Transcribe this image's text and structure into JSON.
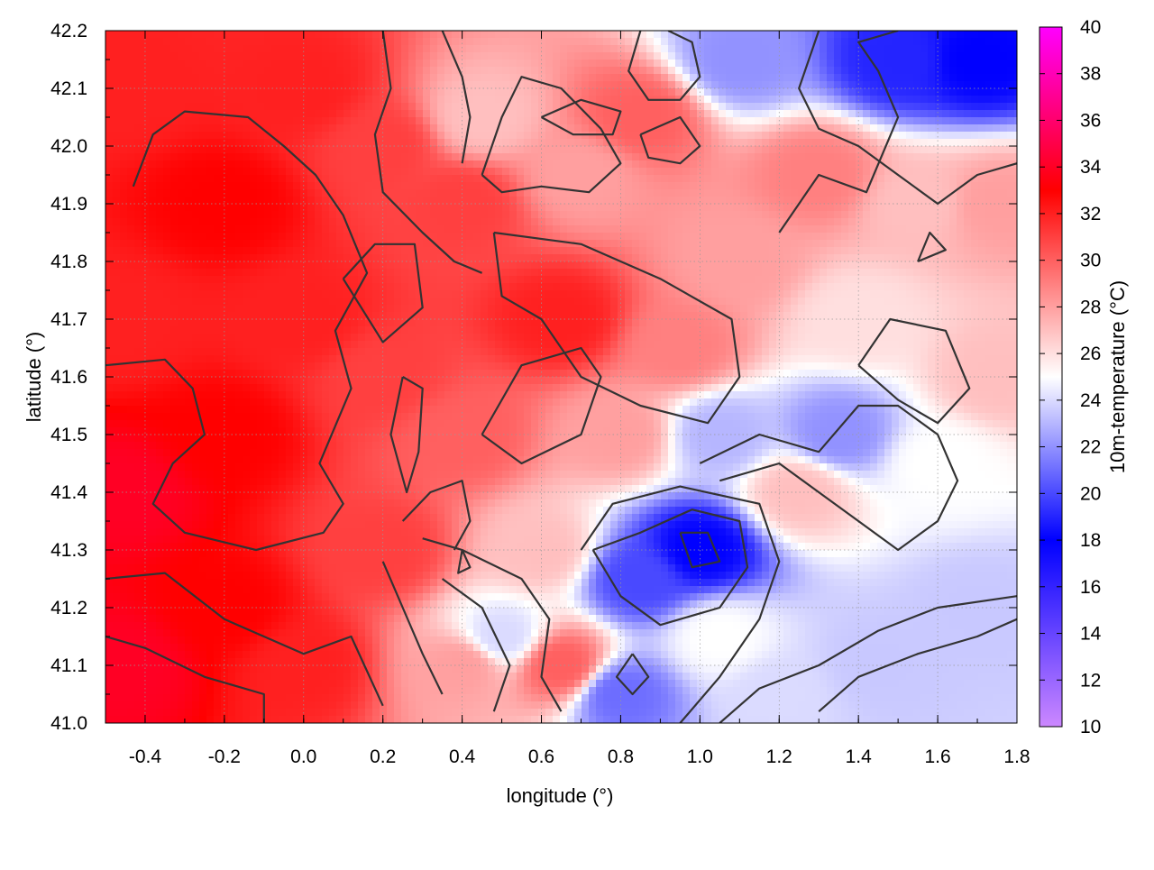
{
  "chart_data": {
    "type": "heatmap",
    "title": "",
    "xlabel": "longitude (°)",
    "ylabel": "latitude (°)",
    "colorbar_label": "10m-temperature (°C)",
    "xlim": [
      -0.5,
      1.8
    ],
    "ylim": [
      41.0,
      42.2
    ],
    "x_ticks": [
      "-0.4",
      "-0.2",
      "0.0",
      "0.2",
      "0.4",
      "0.6",
      "0.8",
      "1.0",
      "1.2",
      "1.4",
      "1.6",
      "1.8"
    ],
    "y_ticks": [
      "41.0",
      "41.1",
      "41.2",
      "41.3",
      "41.4",
      "41.5",
      "41.6",
      "41.7",
      "41.8",
      "41.9",
      "42.0",
      "42.1",
      "42.2"
    ],
    "colorbar_range": [
      10,
      40
    ],
    "colorbar_ticks": [
      "10",
      "12",
      "14",
      "16",
      "18",
      "20",
      "22",
      "24",
      "26",
      "28",
      "30",
      "32",
      "34",
      "36",
      "38",
      "40"
    ],
    "colorscale": [
      {
        "value": 10,
        "color": "#cc88ff"
      },
      {
        "value": 18,
        "color": "#0000ff"
      },
      {
        "value": 25,
        "color": "#ffffff"
      },
      {
        "value": 33,
        "color": "#ff0000"
      },
      {
        "value": 40,
        "color": "#ff00ff"
      }
    ],
    "grid": true,
    "contours": true,
    "temperature_points": [
      {
        "lon": -0.45,
        "lat": 41.1,
        "t": 34
      },
      {
        "lon": -0.45,
        "lat": 41.4,
        "t": 34
      },
      {
        "lon": -0.45,
        "lat": 41.7,
        "t": 32
      },
      {
        "lon": -0.45,
        "lat": 42.1,
        "t": 32
      },
      {
        "lon": -0.2,
        "lat": 41.2,
        "t": 33
      },
      {
        "lon": -0.2,
        "lat": 41.5,
        "t": 33
      },
      {
        "lon": -0.2,
        "lat": 41.9,
        "t": 33
      },
      {
        "lon": 0.0,
        "lat": 41.1,
        "t": 32
      },
      {
        "lon": 0.0,
        "lat": 41.7,
        "t": 32
      },
      {
        "lon": 0.0,
        "lat": 42.1,
        "t": 32
      },
      {
        "lon": 0.2,
        "lat": 41.3,
        "t": 31
      },
      {
        "lon": 0.2,
        "lat": 41.6,
        "t": 31
      },
      {
        "lon": 0.2,
        "lat": 42.0,
        "t": 31
      },
      {
        "lon": 0.4,
        "lat": 41.1,
        "t": 28
      },
      {
        "lon": 0.4,
        "lat": 41.5,
        "t": 30
      },
      {
        "lon": 0.4,
        "lat": 41.9,
        "t": 31
      },
      {
        "lon": 0.45,
        "lat": 42.05,
        "t": 27
      },
      {
        "lon": 0.5,
        "lat": 41.15,
        "t": 24
      },
      {
        "lon": 0.65,
        "lat": 41.7,
        "t": 32
      },
      {
        "lon": 0.6,
        "lat": 41.3,
        "t": 27
      },
      {
        "lon": 0.65,
        "lat": 41.1,
        "t": 30
      },
      {
        "lon": 0.7,
        "lat": 41.95,
        "t": 28
      },
      {
        "lon": 0.85,
        "lat": 42.05,
        "t": 30
      },
      {
        "lon": 0.85,
        "lat": 41.25,
        "t": 20
      },
      {
        "lon": 0.8,
        "lat": 41.05,
        "t": 21
      },
      {
        "lon": 0.8,
        "lat": 41.5,
        "t": 28
      },
      {
        "lon": 0.95,
        "lat": 41.65,
        "t": 29
      },
      {
        "lon": 1.0,
        "lat": 41.3,
        "t": 18
      },
      {
        "lon": 1.05,
        "lat": 41.5,
        "t": 23
      },
      {
        "lon": 1.05,
        "lat": 41.15,
        "t": 25
      },
      {
        "lon": 1.1,
        "lat": 42.15,
        "t": 22
      },
      {
        "lon": 1.1,
        "lat": 41.8,
        "t": 28
      },
      {
        "lon": 1.2,
        "lat": 41.05,
        "t": 24
      },
      {
        "lon": 1.25,
        "lat": 41.4,
        "t": 27
      },
      {
        "lon": 1.3,
        "lat": 41.95,
        "t": 29
      },
      {
        "lon": 1.35,
        "lat": 41.5,
        "t": 22
      },
      {
        "lon": 1.4,
        "lat": 41.7,
        "t": 26
      },
      {
        "lon": 1.45,
        "lat": 41.1,
        "t": 23.5
      },
      {
        "lon": 1.5,
        "lat": 42.15,
        "t": 19
      },
      {
        "lon": 1.55,
        "lat": 41.9,
        "t": 27
      },
      {
        "lon": 1.6,
        "lat": 41.45,
        "t": 25
      },
      {
        "lon": 1.7,
        "lat": 42.15,
        "t": 18
      },
      {
        "lon": 1.7,
        "lat": 41.2,
        "t": 23.5
      },
      {
        "lon": 1.75,
        "lat": 41.6,
        "t": 27
      },
      {
        "lon": 1.75,
        "lat": 41.9,
        "t": 28
      }
    ],
    "contour_lines": [
      [
        [
          -0.5,
          41.62
        ],
        [
          -0.35,
          41.63
        ],
        [
          -0.28,
          41.58
        ],
        [
          -0.25,
          41.5
        ],
        [
          -0.33,
          41.45
        ],
        [
          -0.38,
          41.38
        ],
        [
          -0.3,
          41.33
        ],
        [
          -0.12,
          41.3
        ],
        [
          0.05,
          41.33
        ],
        [
          0.1,
          41.38
        ],
        [
          0.04,
          41.45
        ],
        [
          0.12,
          41.58
        ],
        [
          0.08,
          41.68
        ],
        [
          0.16,
          41.78
        ],
        [
          0.1,
          41.88
        ],
        [
          0.03,
          41.95
        ],
        [
          -0.05,
          42.0
        ],
        [
          -0.14,
          42.05
        ],
        [
          -0.3,
          42.06
        ],
        [
          -0.38,
          42.02
        ],
        [
          -0.43,
          41.93
        ]
      ],
      [
        [
          -0.5,
          41.25
        ],
        [
          -0.35,
          41.26
        ],
        [
          -0.2,
          41.18
        ],
        [
          0.0,
          41.12
        ],
        [
          0.12,
          41.15
        ],
        [
          0.2,
          41.03
        ]
      ],
      [
        [
          -0.5,
          41.15
        ],
        [
          -0.4,
          41.13
        ],
        [
          -0.25,
          41.08
        ],
        [
          -0.1,
          41.05
        ],
        [
          -0.1,
          41.0
        ]
      ],
      [
        [
          0.25,
          41.6
        ],
        [
          0.22,
          41.5
        ],
        [
          0.26,
          41.4
        ],
        [
          0.29,
          41.47
        ],
        [
          0.3,
          41.58
        ],
        [
          0.25,
          41.6
        ]
      ],
      [
        [
          0.1,
          41.77
        ],
        [
          0.2,
          41.66
        ],
        [
          0.3,
          41.72
        ],
        [
          0.28,
          41.83
        ],
        [
          0.18,
          41.83
        ],
        [
          0.1,
          41.77
        ]
      ],
      [
        [
          0.48,
          41.85
        ],
        [
          0.7,
          41.83
        ],
        [
          0.9,
          41.77
        ],
        [
          1.08,
          41.7
        ],
        [
          1.1,
          41.6
        ],
        [
          1.02,
          41.52
        ],
        [
          0.85,
          41.55
        ],
        [
          0.7,
          41.6
        ],
        [
          0.6,
          41.7
        ],
        [
          0.5,
          41.74
        ],
        [
          0.48,
          41.85
        ]
      ],
      [
        [
          0.45,
          41.5
        ],
        [
          0.55,
          41.45
        ],
        [
          0.7,
          41.5
        ],
        [
          0.75,
          41.6
        ],
        [
          0.7,
          41.65
        ],
        [
          0.55,
          41.62
        ],
        [
          0.45,
          41.5
        ]
      ],
      [
        [
          0.73,
          41.3
        ],
        [
          0.85,
          41.33
        ],
        [
          0.98,
          41.37
        ],
        [
          1.1,
          41.35
        ],
        [
          1.12,
          41.27
        ],
        [
          1.05,
          41.2
        ],
        [
          0.9,
          41.17
        ],
        [
          0.8,
          41.22
        ],
        [
          0.73,
          41.3
        ]
      ],
      [
        [
          0.95,
          41.33
        ],
        [
          1.02,
          41.33
        ],
        [
          1.05,
          41.28
        ],
        [
          0.98,
          41.27
        ],
        [
          0.95,
          41.33
        ]
      ],
      [
        [
          0.83,
          41.12
        ],
        [
          0.87,
          41.08
        ],
        [
          0.83,
          41.05
        ],
        [
          0.79,
          41.08
        ],
        [
          0.83,
          41.12
        ]
      ],
      [
        [
          0.7,
          41.3
        ],
        [
          0.78,
          41.38
        ],
        [
          0.95,
          41.41
        ],
        [
          1.15,
          41.38
        ],
        [
          1.2,
          41.28
        ],
        [
          1.15,
          41.18
        ],
        [
          1.05,
          41.08
        ],
        [
          0.95,
          41.0
        ]
      ],
      [
        [
          1.05,
          41.0
        ],
        [
          1.15,
          41.06
        ],
        [
          1.3,
          41.1
        ],
        [
          1.45,
          41.16
        ],
        [
          1.6,
          41.2
        ],
        [
          1.8,
          41.22
        ]
      ],
      [
        [
          1.0,
          41.45
        ],
        [
          1.15,
          41.5
        ],
        [
          1.3,
          41.47
        ],
        [
          1.4,
          41.55
        ],
        [
          1.5,
          41.55
        ],
        [
          1.6,
          41.5
        ],
        [
          1.65,
          41.42
        ],
        [
          1.6,
          41.35
        ],
        [
          1.5,
          41.3
        ],
        [
          1.4,
          41.35
        ],
        [
          1.3,
          41.4
        ],
        [
          1.2,
          41.45
        ],
        [
          1.05,
          41.42
        ]
      ],
      [
        [
          1.4,
          41.62
        ],
        [
          1.48,
          41.7
        ],
        [
          1.62,
          41.68
        ],
        [
          1.68,
          41.58
        ],
        [
          1.6,
          41.52
        ],
        [
          1.5,
          41.56
        ],
        [
          1.4,
          41.62
        ]
      ],
      [
        [
          1.2,
          41.85
        ],
        [
          1.3,
          41.95
        ],
        [
          1.42,
          41.92
        ],
        [
          1.5,
          42.05
        ],
        [
          1.45,
          42.13
        ],
        [
          1.4,
          42.18
        ],
        [
          1.5,
          42.2
        ]
      ],
      [
        [
          1.3,
          42.2
        ],
        [
          1.25,
          42.1
        ],
        [
          1.3,
          42.03
        ],
        [
          1.4,
          42.0
        ],
        [
          1.5,
          41.95
        ],
        [
          1.6,
          41.9
        ],
        [
          1.7,
          41.95
        ],
        [
          1.8,
          41.97
        ]
      ],
      [
        [
          0.45,
          41.95
        ],
        [
          0.5,
          42.05
        ],
        [
          0.55,
          42.12
        ],
        [
          0.65,
          42.1
        ],
        [
          0.75,
          42.03
        ],
        [
          0.8,
          41.97
        ],
        [
          0.72,
          41.92
        ],
        [
          0.6,
          41.93
        ],
        [
          0.5,
          41.92
        ],
        [
          0.45,
          41.95
        ]
      ],
      [
        [
          0.6,
          42.05
        ],
        [
          0.7,
          42.08
        ],
        [
          0.8,
          42.06
        ],
        [
          0.78,
          42.02
        ],
        [
          0.68,
          42.02
        ],
        [
          0.6,
          42.05
        ]
      ],
      [
        [
          0.85,
          42.02
        ],
        [
          0.95,
          42.05
        ],
        [
          1.0,
          42.0
        ],
        [
          0.95,
          41.97
        ],
        [
          0.87,
          41.98
        ],
        [
          0.85,
          42.02
        ]
      ],
      [
        [
          0.85,
          42.2
        ],
        [
          0.82,
          42.13
        ],
        [
          0.87,
          42.08
        ],
        [
          0.95,
          42.08
        ],
        [
          1.0,
          42.12
        ],
        [
          0.98,
          42.18
        ],
        [
          0.92,
          42.2
        ]
      ],
      [
        [
          0.2,
          42.2
        ],
        [
          0.22,
          42.1
        ],
        [
          0.18,
          42.02
        ],
        [
          0.2,
          41.92
        ],
        [
          0.3,
          41.85
        ],
        [
          0.38,
          41.8
        ],
        [
          0.45,
          41.78
        ]
      ],
      [
        [
          0.35,
          42.2
        ],
        [
          0.4,
          42.12
        ],
        [
          0.42,
          42.05
        ],
        [
          0.4,
          41.97
        ]
      ],
      [
        [
          0.3,
          41.32
        ],
        [
          0.4,
          41.3
        ],
        [
          0.55,
          41.25
        ],
        [
          0.62,
          41.18
        ],
        [
          0.6,
          41.08
        ],
        [
          0.65,
          41.02
        ]
      ],
      [
        [
          0.25,
          41.35
        ],
        [
          0.32,
          41.4
        ],
        [
          0.4,
          41.42
        ],
        [
          0.42,
          41.35
        ],
        [
          0.38,
          41.3
        ]
      ],
      [
        [
          0.35,
          41.25
        ],
        [
          0.45,
          41.2
        ],
        [
          0.52,
          41.1
        ],
        [
          0.48,
          41.02
        ]
      ],
      [
        [
          0.2,
          41.28
        ],
        [
          0.25,
          41.2
        ],
        [
          0.3,
          41.12
        ],
        [
          0.35,
          41.05
        ]
      ],
      [
        [
          0.4,
          41.3
        ],
        [
          0.42,
          41.27
        ],
        [
          0.39,
          41.26
        ],
        [
          0.4,
          41.3
        ]
      ],
      [
        [
          1.55,
          41.8
        ],
        [
          1.58,
          41.85
        ],
        [
          1.62,
          41.82
        ],
        [
          1.55,
          41.8
        ]
      ],
      [
        [
          1.3,
          41.02
        ],
        [
          1.4,
          41.08
        ],
        [
          1.55,
          41.12
        ],
        [
          1.7,
          41.15
        ],
        [
          1.8,
          41.18
        ]
      ]
    ]
  }
}
